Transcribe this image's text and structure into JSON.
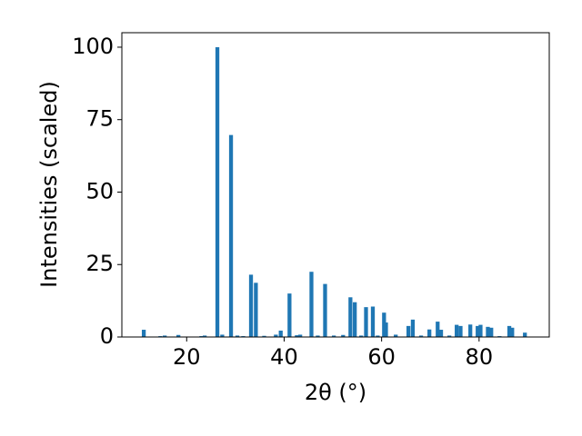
{
  "chart_data": {
    "type": "bar",
    "xlabel": "2θ (°)",
    "ylabel": "Intensities (scaled)",
    "color": "#1f77b4",
    "x": [
      11.2,
      14.6,
      15.5,
      18.3,
      23.0,
      23.7,
      26.3,
      27.3,
      29.1,
      30.4,
      31.6,
      33.2,
      34.2,
      35.9,
      38.3,
      39.3,
      41.1,
      42.6,
      43.3,
      45.6,
      46.9,
      48.4,
      50.2,
      52.1,
      53.6,
      54.5,
      55.8,
      56.8,
      58.2,
      59.2,
      60.5,
      60.9,
      62.9,
      65.5,
      66.4,
      68.1,
      69.8,
      71.5,
      72.2,
      73.9,
      75.4,
      76.2,
      78.2,
      79.7,
      80.3,
      81.8,
      82.5,
      84.2,
      86.2,
      86.8,
      89.4
    ],
    "values": [
      2.5,
      0.3,
      0.5,
      0.7,
      0.3,
      0.5,
      100,
      0.8,
      69.7,
      0.5,
      0.3,
      21.5,
      18.7,
      0.4,
      0.8,
      2.2,
      15,
      0.6,
      0.8,
      22.5,
      0.5,
      18.3,
      0.5,
      0.7,
      13.7,
      12,
      0.5,
      10.3,
      10.5,
      0.5,
      8.4,
      5,
      0.8,
      3.8,
      6,
      0.5,
      2.6,
      5.3,
      2.5,
      0.5,
      4.2,
      3.8,
      4.3,
      3.8,
      4.2,
      3.5,
      3.2,
      0.3,
      3.8,
      3.2,
      1.5
    ],
    "xlim": [
      6.7,
      94.4
    ],
    "ylim": [
      0,
      105
    ],
    "xticks": [
      20,
      40,
      60,
      80
    ],
    "yticks": [
      0,
      25,
      50,
      75,
      100
    ]
  }
}
